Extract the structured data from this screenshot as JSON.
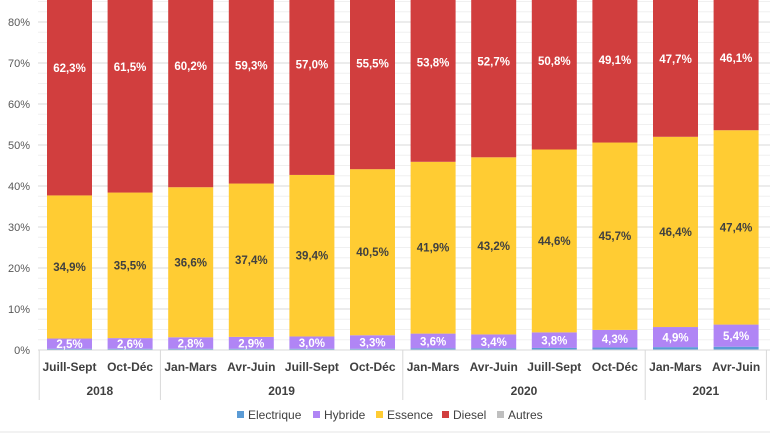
{
  "chart_data": {
    "type": "bar",
    "stacked": true,
    "title": "",
    "xlabel": "",
    "ylabel": "",
    "ylim": [
      0,
      0.85
    ],
    "yticks": [
      "0%",
      "10%",
      "20%",
      "30%",
      "40%",
      "50%",
      "60%",
      "70%",
      "80%"
    ],
    "grid": true,
    "legend_position": "bottom",
    "categories": [
      "Juill-Sept",
      "Oct-Déc",
      "Jan-Mars",
      "Avr-Juin",
      "Juill-Sept",
      "Oct-Déc",
      "Jan-Mars",
      "Avr-Juin",
      "Juill-Sept",
      "Oct-Déc",
      "Jan-Mars",
      "Avr-Juin"
    ],
    "year_groups": [
      {
        "label": "2018",
        "count": 2
      },
      {
        "label": "2019",
        "count": 4
      },
      {
        "label": "2020",
        "count": 4
      },
      {
        "label": "2021",
        "count": 2
      }
    ],
    "series": [
      {
        "name": "Electrique",
        "color": "#5b9bd5",
        "values": [
          0.3,
          0.3,
          0.3,
          0.3,
          0.3,
          0.3,
          0.4,
          0.4,
          0.5,
          0.6,
          0.7,
          0.8
        ],
        "labels": null
      },
      {
        "name": "Hybride",
        "color": "#b085f5",
        "values": [
          2.5,
          2.6,
          2.8,
          2.9,
          3.0,
          3.3,
          3.6,
          3.4,
          3.8,
          4.3,
          4.9,
          5.4
        ],
        "labels": [
          "2,5%",
          "2,6%",
          "2,8%",
          "2,9%",
          "3,0%",
          "3,3%",
          "3,6%",
          "3,4%",
          "3,8%",
          "4,3%",
          "4,9%",
          "5,4%"
        ],
        "label_color": "#ffffff"
      },
      {
        "name": "Essence",
        "color": "#ffcc33",
        "values": [
          34.9,
          35.5,
          36.6,
          37.4,
          39.4,
          40.5,
          41.9,
          43.2,
          44.6,
          45.7,
          46.4,
          47.4
        ],
        "labels": [
          "34,9%",
          "35,5%",
          "36,6%",
          "37,4%",
          "39,4%",
          "40,5%",
          "41,9%",
          "43,2%",
          "44,6%",
          "45,7%",
          "46,4%",
          "47,4%"
        ],
        "label_color": "#404040"
      },
      {
        "name": "Diesel",
        "color": "#d13e3e",
        "values": [
          62.3,
          61.5,
          60.2,
          59.3,
          57.0,
          55.5,
          53.8,
          52.7,
          50.8,
          49.1,
          47.7,
          46.1
        ],
        "labels": [
          "62,3%",
          "61,5%",
          "60,2%",
          "59,3%",
          "57,0%",
          "55,5%",
          "53,8%",
          "52,7%",
          "50,8%",
          "49,1%",
          "47,7%",
          "46,1%"
        ],
        "label_color": "#ffffff"
      },
      {
        "name": "Autres",
        "color": "#bfbfbf",
        "values": [
          0,
          0,
          0,
          0,
          0,
          0,
          0,
          0,
          0,
          0,
          0,
          0
        ],
        "labels": null
      }
    ]
  }
}
